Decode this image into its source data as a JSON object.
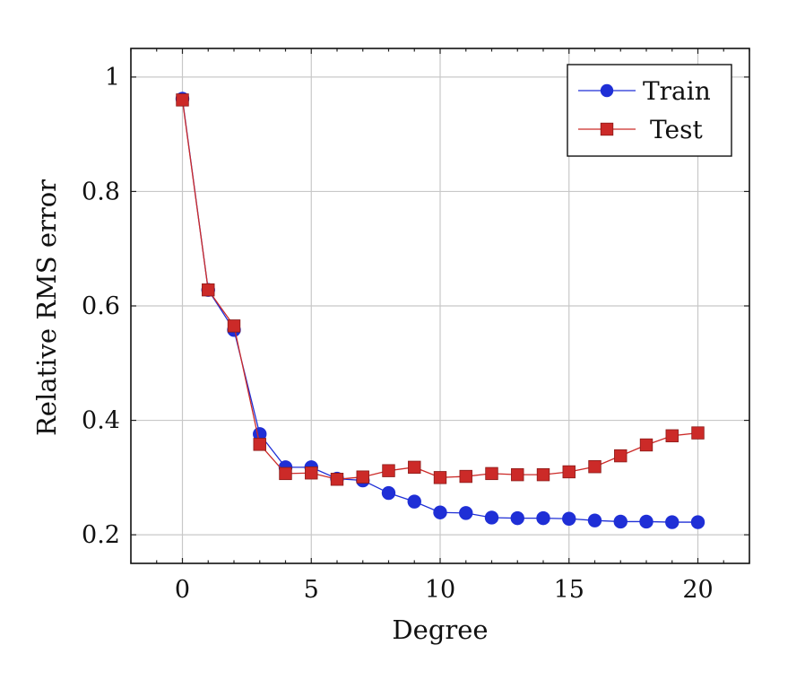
{
  "chart_data": {
    "type": "line",
    "title": "",
    "xlabel": "Degree",
    "ylabel": "Relative RMS error",
    "xlim": [
      -2,
      22
    ],
    "ylim": [
      0.15,
      1.05
    ],
    "xticks": [
      0,
      5,
      10,
      15,
      20
    ],
    "yticks": [
      0.2,
      0.4,
      0.6,
      0.8,
      1
    ],
    "xtick_labels": [
      "0",
      "5",
      "10",
      "15",
      "20"
    ],
    "ytick_labels": [
      "0.2",
      "0.4",
      "0.6",
      "0.8",
      "1"
    ],
    "grid": true,
    "legend_position": "top-right",
    "x": [
      0,
      1,
      2,
      3,
      4,
      5,
      6,
      7,
      8,
      9,
      10,
      11,
      12,
      13,
      14,
      15,
      16,
      17,
      18,
      19,
      20
    ],
    "series": [
      {
        "name": "Train",
        "color": "#1f2fd6",
        "marker": "circle",
        "values": [
          0.962,
          0.628,
          0.558,
          0.376,
          0.318,
          0.318,
          0.298,
          0.295,
          0.273,
          0.258,
          0.239,
          0.238,
          0.23,
          0.229,
          0.229,
          0.228,
          0.225,
          0.223,
          0.223,
          0.222,
          0.222
        ]
      },
      {
        "name": "Test",
        "color": "#cc2a28",
        "marker": "square",
        "values": [
          0.96,
          0.628,
          0.565,
          0.358,
          0.307,
          0.308,
          0.297,
          0.301,
          0.312,
          0.318,
          0.3,
          0.302,
          0.307,
          0.305,
          0.305,
          0.31,
          0.319,
          0.338,
          0.357,
          0.373,
          0.378
        ]
      }
    ]
  }
}
